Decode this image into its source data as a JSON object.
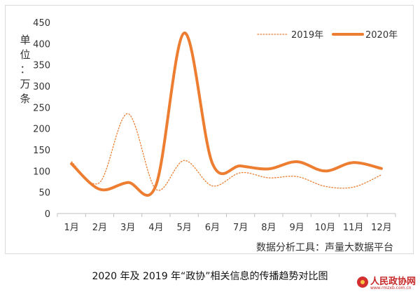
{
  "chart_data": {
    "type": "line",
    "categories": [
      "1月",
      "2月",
      "3月",
      "4月",
      "5月",
      "6月",
      "7月",
      "8月",
      "9月",
      "10月",
      "11月",
      "12月"
    ],
    "series": [
      {
        "name": "2019年",
        "values": [
          122,
          73,
          235,
          57,
          125,
          65,
          96,
          84,
          87,
          64,
          62,
          91
        ],
        "color": "#ED7D31",
        "style": "dotted"
      },
      {
        "name": "2020年",
        "values": [
          117,
          57,
          73,
          67,
          425,
          118,
          112,
          105,
          122,
          100,
          120,
          106
        ],
        "color": "#ED7D31",
        "style": "solid-thick"
      }
    ],
    "ylabel": "单位：万条",
    "ylim": [
      0,
      450
    ],
    "yticks": [
      0,
      50,
      100,
      150,
      200,
      250,
      300,
      350,
      400,
      450
    ],
    "grid": false,
    "legend_position": "top-right",
    "source_note": "数据分析工具：声量大数据平台"
  },
  "caption": "2020 年及 2019 年“政协”相关信息的传播趋势对比图",
  "logo": {
    "name": "人民政协网",
    "url": "www.rmzxb.com.cn"
  }
}
